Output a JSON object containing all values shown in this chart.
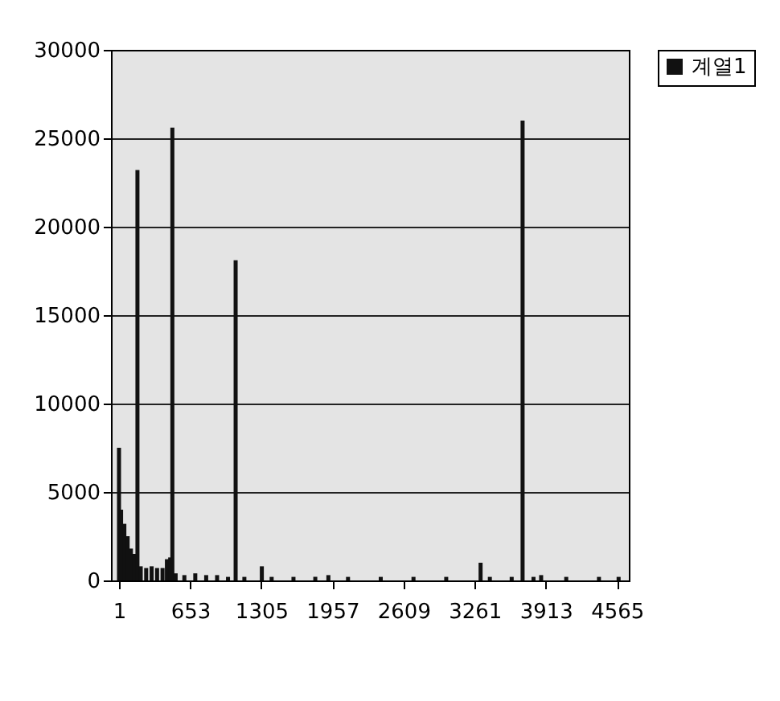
{
  "chart_data": {
    "type": "bar",
    "x": [
      1,
      20,
      50,
      80,
      110,
      140,
      170,
      200,
      250,
      300,
      350,
      400,
      440,
      470,
      490,
      520,
      600,
      700,
      800,
      900,
      1000,
      1070,
      1150,
      1310,
      1400,
      1600,
      1800,
      1920,
      2100,
      2400,
      2700,
      3000,
      3315,
      3400,
      3600,
      3700,
      3800,
      3870,
      4100,
      4400,
      4580
    ],
    "series": [
      {
        "name": "계열1",
        "color": "#111111",
        "values": [
          7500,
          4000,
          3200,
          2500,
          1800,
          1500,
          23200,
          800,
          700,
          800,
          700,
          700,
          1200,
          1300,
          25600,
          400,
          300,
          400,
          300,
          300,
          200,
          18100,
          200,
          800,
          200,
          200,
          200,
          300,
          200,
          200,
          200,
          200,
          1000,
          200,
          200,
          26000,
          200,
          300,
          200,
          200,
          200
        ]
      }
    ],
    "xlim": [
      1,
      4600
    ],
    "xticks": [
      1,
      653,
      1305,
      1957,
      2609,
      3261,
      3913,
      4565
    ],
    "ylim": [
      0,
      30000
    ],
    "yticks": [
      0,
      5000,
      10000,
      15000,
      20000,
      25000,
      30000
    ],
    "grid": "y",
    "legend": "right"
  }
}
